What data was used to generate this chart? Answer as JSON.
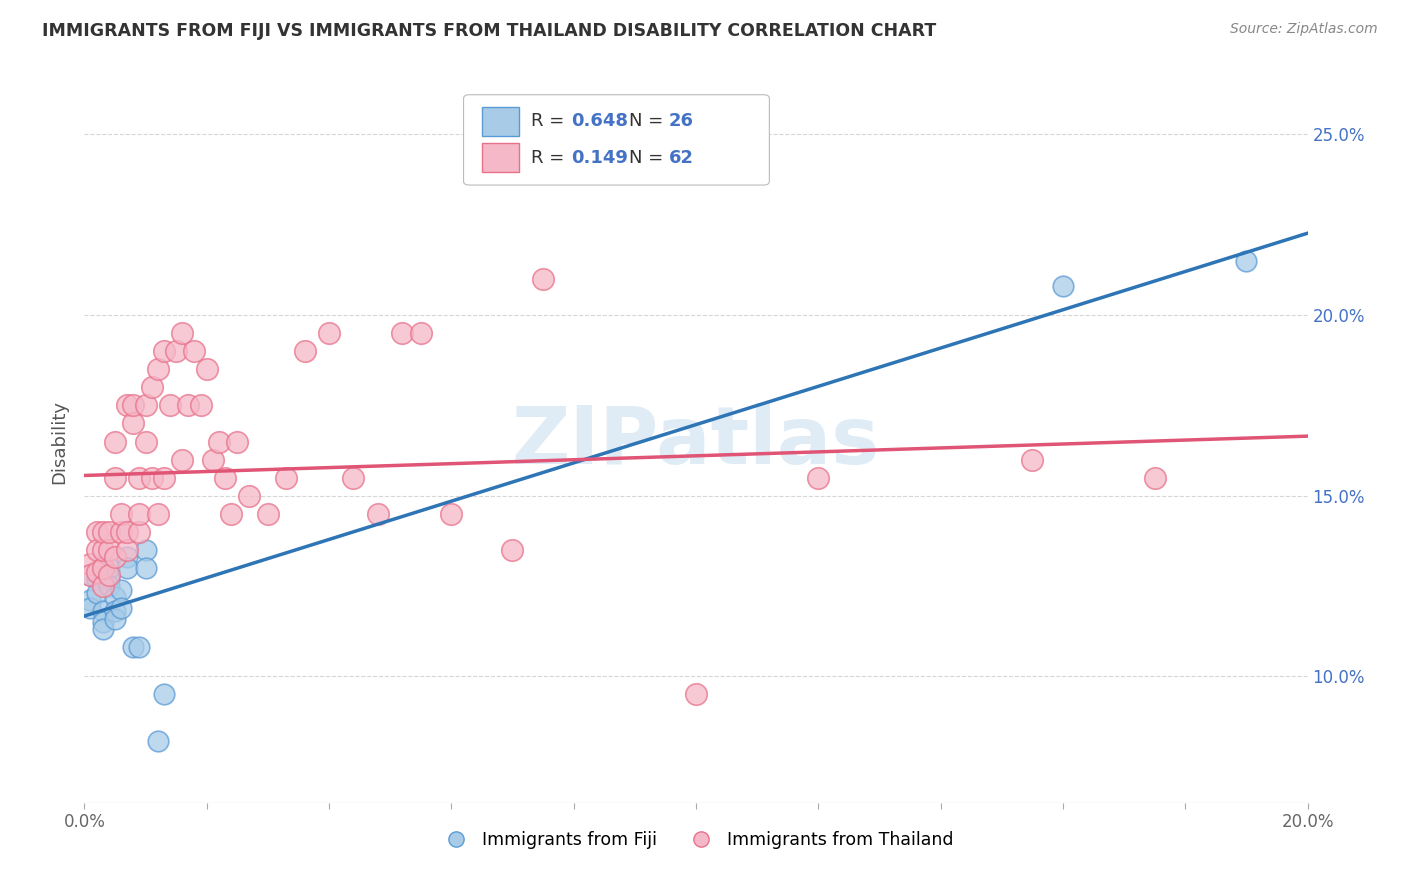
{
  "title": "IMMIGRANTS FROM FIJI VS IMMIGRANTS FROM THAILAND DISABILITY CORRELATION CHART",
  "source": "Source: ZipAtlas.com",
  "ylabel": "Disability",
  "xlim": [
    0.0,
    0.2
  ],
  "ylim": [
    0.065,
    0.265
  ],
  "xticks": [
    0.0,
    0.02,
    0.04,
    0.06,
    0.08,
    0.1,
    0.12,
    0.14,
    0.16,
    0.18,
    0.2
  ],
  "xticklabels": [
    "0.0%",
    "",
    "",
    "",
    "",
    "",
    "",
    "",
    "",
    "",
    "20.0%"
  ],
  "yticks": [
    0.1,
    0.15,
    0.2,
    0.25
  ],
  "yticklabels": [
    "10.0%",
    "15.0%",
    "20.0%",
    "25.0%"
  ],
  "fiji_color": "#a8cce8",
  "thailand_color": "#f5b8c8",
  "fiji_edge_color": "#5b9bd5",
  "thailand_edge_color": "#e8728a",
  "fiji_line_color": "#2e75b6",
  "thailand_line_color": "#e05575",
  "fiji_R": 0.648,
  "fiji_N": 26,
  "thailand_R": 0.149,
  "thailand_N": 62,
  "legend_label_fiji": "Immigrants from Fiji",
  "legend_label_thailand": "Immigrants from Thailand",
  "watermark": "ZIPatlas",
  "fiji_x": [
    0.001,
    0.001,
    0.001,
    0.002,
    0.002,
    0.003,
    0.003,
    0.003,
    0.004,
    0.004,
    0.004,
    0.005,
    0.005,
    0.005,
    0.006,
    0.006,
    0.007,
    0.007,
    0.008,
    0.009,
    0.01,
    0.01,
    0.012,
    0.013,
    0.16,
    0.19
  ],
  "fiji_y": [
    0.128,
    0.121,
    0.119,
    0.127,
    0.123,
    0.118,
    0.115,
    0.113,
    0.127,
    0.13,
    0.125,
    0.122,
    0.118,
    0.116,
    0.124,
    0.119,
    0.133,
    0.13,
    0.108,
    0.108,
    0.135,
    0.13,
    0.082,
    0.095,
    0.208,
    0.215
  ],
  "thailand_x": [
    0.001,
    0.001,
    0.002,
    0.002,
    0.002,
    0.003,
    0.003,
    0.003,
    0.003,
    0.004,
    0.004,
    0.004,
    0.005,
    0.005,
    0.005,
    0.006,
    0.006,
    0.007,
    0.007,
    0.007,
    0.008,
    0.008,
    0.009,
    0.009,
    0.009,
    0.01,
    0.01,
    0.011,
    0.011,
    0.012,
    0.012,
    0.013,
    0.013,
    0.014,
    0.015,
    0.016,
    0.016,
    0.017,
    0.018,
    0.019,
    0.02,
    0.021,
    0.022,
    0.023,
    0.024,
    0.025,
    0.027,
    0.03,
    0.033,
    0.036,
    0.04,
    0.044,
    0.048,
    0.052,
    0.055,
    0.06,
    0.07,
    0.075,
    0.1,
    0.12,
    0.155,
    0.175
  ],
  "thailand_y": [
    0.131,
    0.128,
    0.14,
    0.135,
    0.129,
    0.125,
    0.13,
    0.135,
    0.14,
    0.128,
    0.135,
    0.14,
    0.165,
    0.155,
    0.133,
    0.14,
    0.145,
    0.135,
    0.14,
    0.175,
    0.17,
    0.175,
    0.14,
    0.145,
    0.155,
    0.175,
    0.165,
    0.155,
    0.18,
    0.145,
    0.185,
    0.155,
    0.19,
    0.175,
    0.19,
    0.16,
    0.195,
    0.175,
    0.19,
    0.175,
    0.185,
    0.16,
    0.165,
    0.155,
    0.145,
    0.165,
    0.15,
    0.145,
    0.155,
    0.19,
    0.195,
    0.155,
    0.145,
    0.195,
    0.195,
    0.145,
    0.135,
    0.21,
    0.095,
    0.155,
    0.16,
    0.155
  ]
}
